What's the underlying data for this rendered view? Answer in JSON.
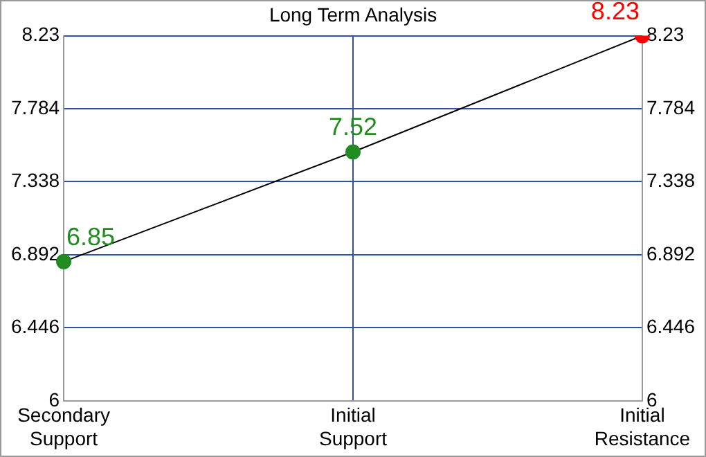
{
  "chart_data": {
    "type": "line",
    "title": "Long Term Analysis",
    "categories": [
      "Secondary Support",
      "Initial Support",
      "Initial Resistance"
    ],
    "series": [
      {
        "color": "#000000",
        "colors": [
          "#228b22",
          "#228b22",
          "#ff0000"
        ],
        "values": [
          6.85,
          7.52,
          8.23
        ]
      }
    ],
    "ylim": [
      6,
      8.23
    ],
    "yticks": [
      6,
      6.446,
      6.892,
      7.338,
      7.784,
      8.23
    ],
    "y2lim": [
      6,
      8.23
    ],
    "y2ticks": [
      6,
      6.446,
      6.892,
      7.338,
      7.784,
      8.23
    ],
    "grid": true,
    "marker": "circle",
    "line_style": "solid",
    "data_labels": true,
    "legend": false
  }
}
